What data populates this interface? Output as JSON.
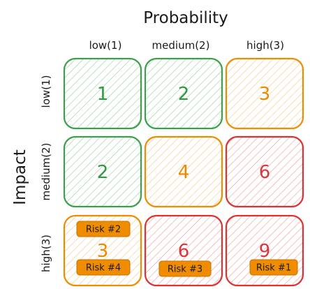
{
  "axes": {
    "probability_title": "Probability",
    "impact_title": "Impact"
  },
  "columns": [
    "low(1)",
    "medium(2)",
    "high(3)"
  ],
  "rows": [
    "low(1)",
    "medium(2)",
    "high(3)"
  ],
  "levels": {
    "low": {
      "stroke": "#3aa14a",
      "text": "#2f9a3f"
    },
    "medium": {
      "stroke": "#f08c00",
      "text": "#ea8a00"
    },
    "high": {
      "stroke": "#e03131",
      "text": "#d9363e"
    }
  },
  "cells": [
    {
      "row": 0,
      "col": 0,
      "score": "1",
      "level": "low"
    },
    {
      "row": 0,
      "col": 1,
      "score": "2",
      "level": "low"
    },
    {
      "row": 0,
      "col": 2,
      "score": "3",
      "level": "medium"
    },
    {
      "row": 1,
      "col": 0,
      "score": "2",
      "level": "low"
    },
    {
      "row": 1,
      "col": 1,
      "score": "4",
      "level": "medium"
    },
    {
      "row": 1,
      "col": 2,
      "score": "6",
      "level": "high"
    },
    {
      "row": 2,
      "col": 0,
      "score": "3",
      "level": "medium"
    },
    {
      "row": 2,
      "col": 1,
      "score": "6",
      "level": "high"
    },
    {
      "row": 2,
      "col": 2,
      "score": "9",
      "level": "high"
    }
  ],
  "risks": [
    {
      "label": "Risk #2",
      "row": 2,
      "col": 0
    },
    {
      "label": "Risk #4",
      "row": 2,
      "col": 0
    },
    {
      "label": "Risk #3",
      "row": 2,
      "col": 1
    },
    {
      "label": "Risk #1",
      "row": 2,
      "col": 2
    }
  ],
  "tag_color": "#f08c00"
}
